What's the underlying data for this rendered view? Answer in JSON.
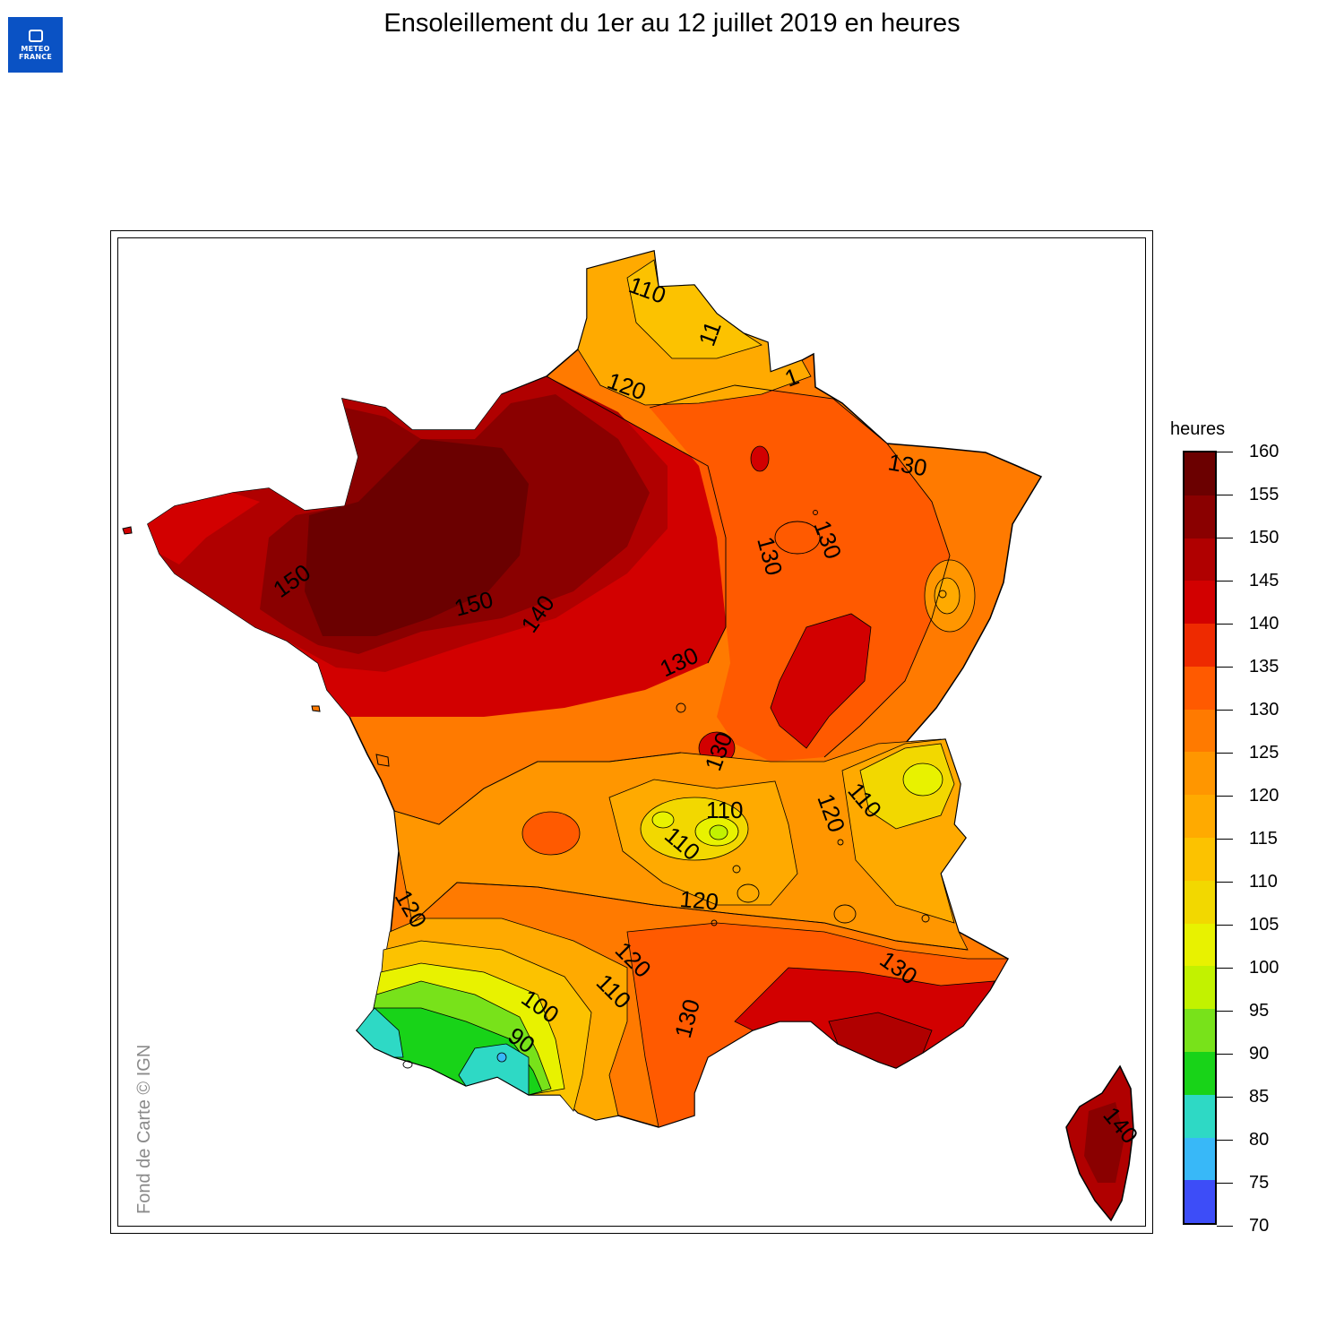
{
  "header": {
    "title": "Ensoleillement du 1er au 12 juillet 2019 en heures",
    "logo_text": "METEO FRANCE"
  },
  "map": {
    "credit": "Fond de Carte © IGN",
    "contour_labels": [
      "110",
      "11",
      "120",
      "1",
      "130",
      "130",
      "130",
      "150",
      "150",
      "140",
      "130",
      "130",
      "110",
      "110",
      "120",
      "110",
      "120",
      "120",
      "110",
      "100",
      "90",
      "120",
      "130",
      "130",
      "140"
    ]
  },
  "legend": {
    "title": "heures",
    "levels": [
      "160",
      "155",
      "150",
      "145",
      "140",
      "135",
      "130",
      "125",
      "120",
      "115",
      "110",
      "105",
      "100",
      "95",
      "90",
      "85",
      "80",
      "75",
      "70"
    ],
    "colors": [
      "#6b0000",
      "#8a0000",
      "#b00000",
      "#d20000",
      "#ee2a00",
      "#ff5a00",
      "#ff7a00",
      "#ff9600",
      "#ffaa00",
      "#fcc200",
      "#f2d800",
      "#e8f200",
      "#c2f200",
      "#78e21a",
      "#18d318",
      "#2ed9c5",
      "#38b8f8",
      "#3d4df8"
    ]
  }
}
